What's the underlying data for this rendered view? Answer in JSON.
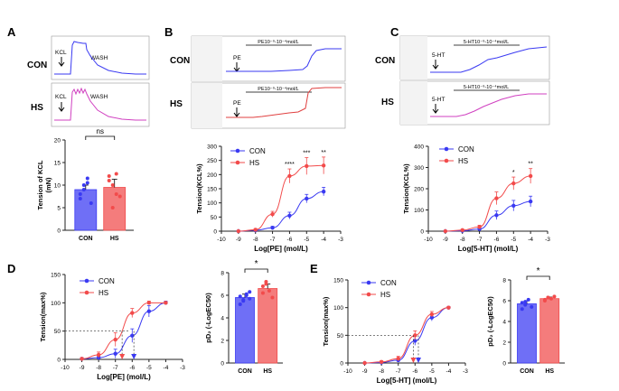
{
  "colors": {
    "con": "#3a3af2",
    "hs": "#f24b4b",
    "con_fill": "#6f6ff6",
    "hs_fill": "#f47c7c",
    "axis": "#222222",
    "trace_bg": "#ffffff"
  },
  "panelA": {
    "letter": "A",
    "con_label": "CON",
    "hs_label": "HS",
    "trace_kcl": "KCL",
    "trace_wash": "WASH"
  },
  "panelB": {
    "letter": "B",
    "con_label": "CON",
    "hs_label": "HS",
    "trace_drug": "PE",
    "trace_bar": "PE10⁻⁹-10⁻⁴mol/L"
  },
  "panelC": {
    "letter": "C",
    "con_label": "CON",
    "hs_label": "HS",
    "trace_drug": "5-HT",
    "trace_bar": "5-HT10⁻⁹-10⁻⁴mol/L"
  },
  "panelD": {
    "letter": "D"
  },
  "panelE": {
    "letter": "E"
  },
  "chart_data": [
    {
      "id": "A_bar",
      "type": "bar",
      "title": "",
      "ylabel_line1": "Tension of KCL",
      "ylabel_line2": "(mN)",
      "categories": [
        "CON",
        "HS"
      ],
      "values": [
        9.0,
        9.5
      ],
      "errors": [
        1.0,
        1.8
      ],
      "ylim": [
        0,
        20
      ],
      "yticks": [
        0,
        5,
        10,
        15,
        20
      ],
      "significance": "ns",
      "points": [
        [
          7,
          9,
          10.5,
          6,
          8,
          10,
          11.5
        ],
        [
          12,
          10,
          8,
          7.5,
          11,
          5,
          12.5
        ]
      ]
    },
    {
      "id": "B_line",
      "type": "line",
      "xlabel": "Log[PE] (mol/L)",
      "ylabel": "Tension(KCL%)",
      "xlim": [
        -10,
        -3
      ],
      "ylim": [
        0,
        300
      ],
      "xticks": [
        -10,
        -9,
        -8,
        -7,
        -6,
        -5,
        -4,
        -3
      ],
      "yticks": [
        0,
        50,
        100,
        150,
        200,
        250,
        300
      ],
      "x": [
        -9,
        -8,
        -7,
        -6,
        -5,
        -4
      ],
      "series": [
        {
          "name": "CON",
          "values": [
            0,
            3,
            12,
            55,
            115,
            140
          ],
          "errors": [
            2,
            3,
            5,
            12,
            15,
            15
          ]
        },
        {
          "name": "HS",
          "values": [
            0,
            5,
            60,
            195,
            230,
            232
          ],
          "errors": [
            2,
            4,
            10,
            25,
            30,
            30
          ]
        }
      ],
      "annotations": [
        {
          "x": -6,
          "text": "****"
        },
        {
          "x": -5,
          "text": "***"
        },
        {
          "x": -4,
          "text": "**"
        }
      ]
    },
    {
      "id": "C_line",
      "type": "line",
      "xlabel": "Log[5-HT] (mol/L)",
      "ylabel": "Tension(KCL%)",
      "xlim": [
        -10,
        -3
      ],
      "ylim": [
        0,
        400
      ],
      "xticks": [
        -10,
        -9,
        -8,
        -7,
        -6,
        -5,
        -4,
        -3
      ],
      "yticks": [
        0,
        100,
        200,
        300,
        400
      ],
      "x": [
        -9,
        -8,
        -7,
        -6,
        -5,
        -4
      ],
      "series": [
        {
          "name": "CON",
          "values": [
            0,
            2,
            10,
            75,
            120,
            140
          ],
          "errors": [
            2,
            3,
            5,
            20,
            25,
            25
          ]
        },
        {
          "name": "HS",
          "values": [
            0,
            5,
            20,
            155,
            225,
            260
          ],
          "errors": [
            2,
            4,
            8,
            30,
            30,
            35
          ]
        }
      ],
      "annotations": [
        {
          "x": -5,
          "text": "*"
        },
        {
          "x": -4,
          "text": "**"
        }
      ]
    },
    {
      "id": "D_line",
      "type": "line",
      "xlabel": "Log[PE] (mol/L)",
      "ylabel": "Tension(max%)",
      "xlim": [
        -10,
        -3
      ],
      "ylim": [
        0,
        150
      ],
      "xticks": [
        -10,
        -9,
        -8,
        -7,
        -6,
        -5,
        -4,
        -3
      ],
      "yticks": [
        0,
        50,
        100,
        150
      ],
      "x": [
        -9,
        -8,
        -7,
        -6,
        -5,
        -4
      ],
      "series": [
        {
          "name": "CON",
          "values": [
            1,
            3,
            10,
            42,
            85,
            100
          ],
          "errors": [
            2,
            3,
            8,
            12,
            10,
            3
          ]
        },
        {
          "name": "HS",
          "values": [
            1,
            8,
            35,
            82,
            100,
            100
          ],
          "errors": [
            2,
            5,
            12,
            8,
            3,
            2
          ]
        }
      ],
      "ec50_markers": [
        {
          "name": "CON",
          "x": -5.9
        },
        {
          "name": "HS",
          "x": -6.6
        }
      ],
      "reference_y": 50
    },
    {
      "id": "D_bar",
      "type": "bar",
      "ylabel": "pD₂ (-LogEC50)",
      "categories": [
        "CON",
        "HS"
      ],
      "values": [
        5.8,
        6.6
      ],
      "errors": [
        0.3,
        0.4
      ],
      "ylim": [
        0,
        8
      ],
      "yticks": [
        0,
        2,
        4,
        6,
        8
      ],
      "significance": "*",
      "points": [
        [
          5.2,
          5.6,
          6.0,
          6.3,
          5.9,
          5.5,
          6.1,
          5.7
        ],
        [
          6.2,
          7.0,
          6.4,
          5.8,
          6.8,
          7.2
        ]
      ]
    },
    {
      "id": "E_line",
      "type": "line",
      "xlabel": "Log[5-HT] (mol/L)",
      "ylabel": "Tension(max%)",
      "xlim": [
        -10,
        -3
      ],
      "ylim": [
        0,
        150
      ],
      "xticks": [
        -10,
        -9,
        -8,
        -7,
        -6,
        -5,
        -4,
        -3
      ],
      "yticks": [
        0,
        50,
        100,
        150
      ],
      "x": [
        -9,
        -8,
        -7,
        -6,
        -5,
        -4
      ],
      "series": [
        {
          "name": "CON",
          "values": [
            0,
            1,
            5,
            40,
            82,
            100
          ],
          "errors": [
            1,
            1,
            3,
            8,
            6,
            2
          ]
        },
        {
          "name": "HS",
          "values": [
            0,
            2,
            8,
            50,
            88,
            100
          ],
          "errors": [
            1,
            2,
            4,
            8,
            5,
            2
          ]
        }
      ],
      "ec50_markers": [
        {
          "name": "HS",
          "x": -6.1
        },
        {
          "name": "CON",
          "x": -5.8
        }
      ],
      "reference_y": 50
    },
    {
      "id": "E_bar",
      "type": "bar",
      "ylabel": "pD₂ (-LogEC50)",
      "categories": [
        "CON",
        "HS"
      ],
      "values": [
        5.7,
        6.2
      ],
      "errors": [
        0.3,
        0.15
      ],
      "ylim": [
        0,
        8
      ],
      "yticks": [
        0,
        2,
        4,
        6,
        8
      ],
      "significance": "*",
      "points": [
        [
          5.2,
          5.9,
          6.1,
          5.4,
          5.8,
          5.6
        ],
        [
          6.1,
          6.3,
          6.2,
          6.4,
          6.0,
          6.3
        ]
      ]
    }
  ]
}
